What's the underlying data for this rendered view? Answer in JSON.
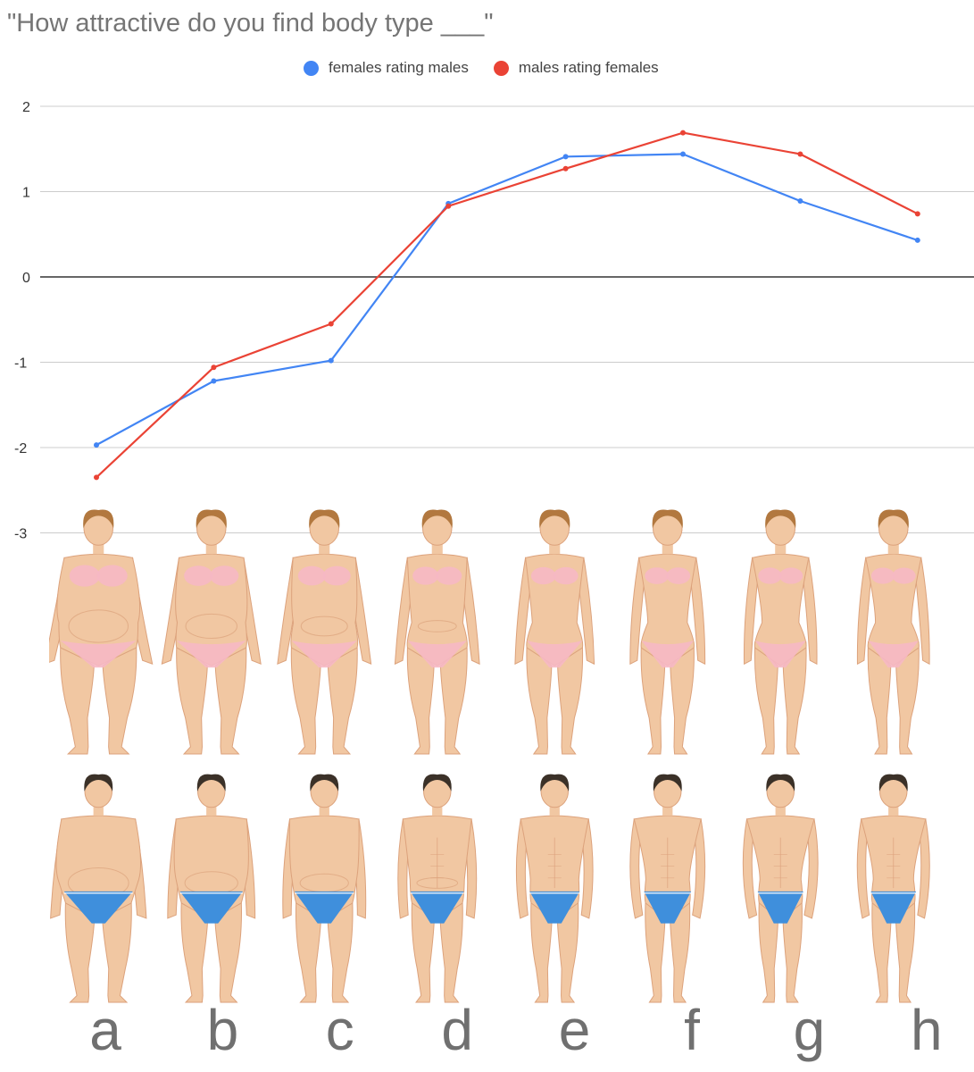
{
  "chart_data": {
    "type": "line",
    "title": "\"How attractive do you find body type ___\"",
    "categories": [
      "a",
      "b",
      "c",
      "d",
      "e",
      "f",
      "g",
      "h"
    ],
    "series": [
      {
        "name": "females rating males",
        "color": "#4285F4",
        "values": [
          -1.97,
          -1.22,
          -0.98,
          0.86,
          1.41,
          1.44,
          0.89,
          0.43
        ]
      },
      {
        "name": "males rating females",
        "color": "#EA4335",
        "values": [
          -2.35,
          -1.06,
          -0.55,
          0.83,
          1.27,
          1.69,
          1.44,
          0.74
        ]
      }
    ],
    "yticks": [
      "2",
      "1",
      "0",
      "-1",
      "-2",
      "-3"
    ],
    "ylim": [
      -3,
      2
    ],
    "xlabel": "",
    "ylabel": "",
    "grid": true,
    "legend_position": "top-center"
  },
  "figures": {
    "female_row": "illustrations of female body types a to h",
    "male_row": "illustrations of male body types a to h"
  },
  "colors": {
    "skin": "#f1c7a2",
    "skin_shade": "#dca27c",
    "hair_female": "#b2783f",
    "hair_male": "#3b3128",
    "bikini": "#f6b8c4",
    "trunks": "#3f8fdc"
  }
}
